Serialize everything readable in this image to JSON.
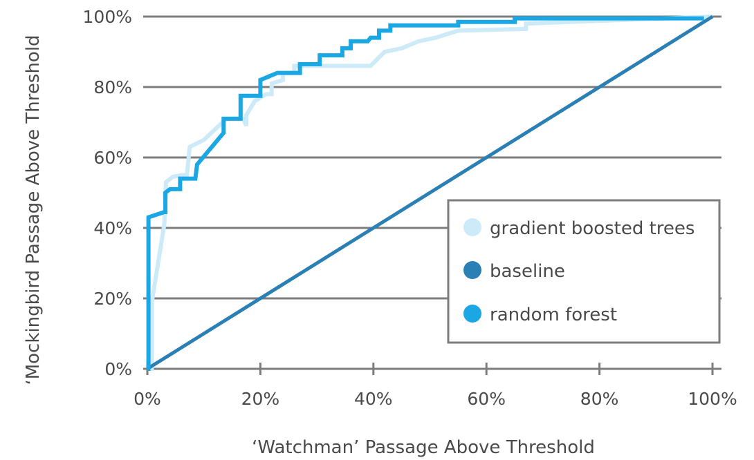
{
  "chart_data": {
    "type": "line",
    "xlabel": "‘Watchman’ Passage Above Threshold",
    "ylabel": "‘Mockingbird Passage Above Threshold",
    "xlim": [
      0,
      100
    ],
    "ylim": [
      0,
      100
    ],
    "x_ticks": [
      "0%",
      "20%",
      "40%",
      "60%",
      "80%",
      "100%"
    ],
    "y_ticks": [
      "0%",
      "20%",
      "40%",
      "60%",
      "80%",
      "100%"
    ],
    "grid": "horizontal",
    "legend_position": "bottom-right",
    "series": [
      {
        "name": "gradient boosted trees",
        "color": "#cdeaf9",
        "x": [
          0,
          0.8,
          0.8,
          3,
          3,
          3.3,
          3.3,
          4.5,
          6,
          7,
          7.5,
          7.5,
          10,
          12,
          14,
          17,
          17.5,
          17.5,
          19,
          21,
          22,
          22,
          24,
          24,
          26,
          26,
          28,
          30,
          30,
          33,
          36,
          39.5,
          42,
          42,
          45,
          45,
          48,
          48,
          51,
          51,
          53,
          53,
          55,
          55,
          67,
          67,
          100
        ],
        "y": [
          0,
          0,
          19,
          41,
          41,
          53,
          53,
          54.5,
          55,
          55,
          63,
          63,
          65,
          68,
          71,
          71,
          69,
          72,
          76,
          78,
          78,
          81,
          82,
          84,
          84,
          86,
          86,
          86,
          86,
          86,
          86,
          86,
          90,
          90,
          91,
          91,
          93,
          93,
          94,
          94,
          95,
          95,
          96,
          96,
          96.5,
          98,
          100
        ]
      },
      {
        "name": "baseline",
        "color": "#2a7fb5",
        "x": [
          0,
          100
        ],
        "y": [
          0,
          100
        ]
      },
      {
        "name": "random forest",
        "color": "#1aa7e3",
        "x": [
          0,
          0.2,
          0.2,
          3,
          3.2,
          3.2,
          4,
          5.8,
          5.8,
          8.5,
          8.8,
          13.5,
          13.5,
          16.5,
          16.5,
          20,
          20,
          21.5,
          23,
          23,
          27,
          27,
          30.5,
          30.5,
          34.5,
          34.5,
          36,
          36,
          39,
          39.5,
          41,
          41,
          43,
          43,
          45,
          55,
          55,
          65,
          65,
          98.5
        ],
        "y": [
          0,
          0,
          43,
          44.5,
          44.5,
          50,
          51,
          51,
          54,
          54,
          58,
          67,
          71,
          71,
          77.5,
          77.5,
          82,
          83,
          84,
          84,
          84,
          86.5,
          86.5,
          89,
          89,
          91,
          91,
          93,
          93,
          94,
          94,
          96,
          96,
          97.5,
          97.5,
          97.5,
          98.5,
          98.5,
          99.5,
          99.5
        ]
      }
    ]
  }
}
